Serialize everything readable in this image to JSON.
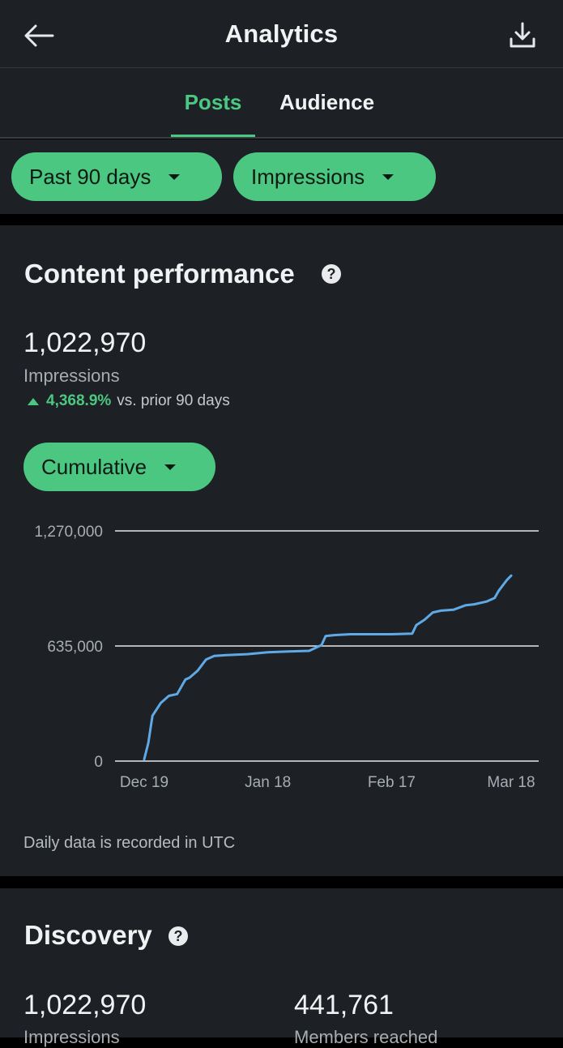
{
  "header": {
    "title": "Analytics",
    "back_icon": "arrow-left-icon",
    "download_icon": "download-icon"
  },
  "tabs": [
    {
      "label": "Posts",
      "active": true
    },
    {
      "label": "Audience",
      "active": false
    }
  ],
  "filters": {
    "range": "Past 90 days",
    "metric": "Impressions"
  },
  "content_performance": {
    "title": "Content performance",
    "total": "1,022,970",
    "label": "Impressions",
    "change_pct": "4,368.9%",
    "change_text": "vs. prior 90 days",
    "mode": "Cumulative",
    "footnote": "Daily data is recorded in UTC"
  },
  "discovery": {
    "title": "Discovery",
    "impressions_value": "1,022,970",
    "impressions_label": "Impressions",
    "members_value": "441,761",
    "members_label": "Members reached"
  },
  "colors": {
    "accent": "#4cc782",
    "line": "#5ea9e6",
    "card_bg": "#1d2125"
  },
  "chart_data": {
    "type": "line",
    "title": "",
    "xlabel": "",
    "ylabel": "",
    "ylim": [
      0,
      1270000
    ],
    "y_ticks": [
      "1,270,000",
      "635,000",
      "0"
    ],
    "y_tick_values": [
      1270000,
      635000,
      0
    ],
    "x_ticks": [
      "Dec 19",
      "Jan 18",
      "Feb 17",
      "Mar 18"
    ],
    "x_tick_days": [
      0,
      30,
      60,
      89
    ],
    "grid": true,
    "series": [
      {
        "days": [
          0,
          1,
          2,
          4,
          6,
          8,
          10,
          11,
          13,
          15,
          17,
          20,
          25,
          30,
          35,
          40,
          43,
          44,
          46,
          50,
          55,
          60,
          65,
          66,
          68,
          70,
          72,
          75,
          78,
          80,
          83,
          85,
          86,
          88,
          89
        ],
        "values": [
          10000,
          100000,
          250000,
          320000,
          360000,
          370000,
          450000,
          460000,
          500000,
          560000,
          580000,
          585000,
          590000,
          600000,
          605000,
          608000,
          640000,
          690000,
          695000,
          700000,
          700000,
          700000,
          703000,
          750000,
          780000,
          820000,
          830000,
          835000,
          860000,
          865000,
          880000,
          900000,
          940000,
          1000000,
          1022970
        ]
      }
    ]
  }
}
